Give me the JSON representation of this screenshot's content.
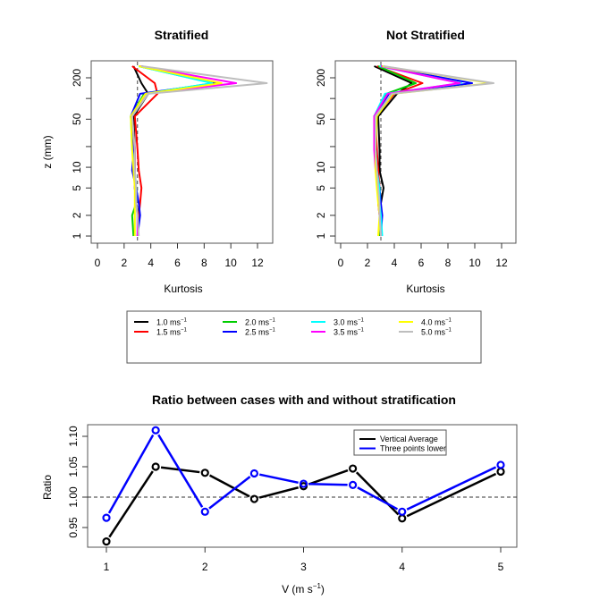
{
  "chart_data": [
    {
      "type": "line",
      "title": "Stratified",
      "xlabel": "Kurtosis",
      "ylabel": "z (mm)",
      "xlim": [
        0,
        13
      ],
      "ylim_log": [
        1,
        300
      ],
      "yscale": "log",
      "xticks": [
        0,
        2,
        4,
        6,
        8,
        10,
        12
      ],
      "yticks": [
        1,
        2,
        5,
        10,
        20,
        50,
        100,
        200
      ],
      "ytick_labels": [
        "1",
        "2",
        "5",
        "10",
        "",
        "50",
        "",
        "200"
      ],
      "reference_line": {
        "x": 3,
        "style": "dashed"
      },
      "z": [
        1,
        2,
        3,
        5,
        9,
        18,
        55,
        117,
        167,
        295
      ],
      "series": [
        {
          "name": "1.0 ms-1",
          "color": "#000000",
          "values": [
            3.0,
            3.1,
            2.9,
            2.8,
            2.8,
            2.8,
            2.7,
            3.8,
            3.3,
            2.7
          ]
        },
        {
          "name": "1.5 ms-1",
          "color": "#ff0000",
          "values": [
            3.0,
            3.1,
            3.2,
            3.3,
            3.1,
            3.0,
            2.8,
            4.5,
            4.3,
            2.6
          ]
        },
        {
          "name": "2.0 ms-1",
          "color": "#00cd00",
          "values": [
            2.7,
            2.6,
            2.9,
            2.8,
            2.8,
            2.7,
            2.5,
            3.5,
            8.7,
            3.1
          ]
        },
        {
          "name": "2.5 ms-1",
          "color": "#0000ff",
          "values": [
            3.0,
            3.2,
            3.1,
            2.9,
            2.6,
            2.7,
            2.5,
            3.2,
            9.0,
            3.3
          ]
        },
        {
          "name": "3.0 ms-1",
          "color": "#00ffff",
          "values": [
            3.0,
            3.0,
            2.9,
            2.9,
            2.8,
            2.6,
            2.5,
            3.6,
            8.6,
            3.1
          ]
        },
        {
          "name": "3.5 ms-1",
          "color": "#ff00ff",
          "values": [
            3.0,
            3.0,
            2.9,
            2.8,
            2.8,
            2.8,
            2.6,
            3.6,
            10.4,
            3.2
          ]
        },
        {
          "name": "4.0 ms-1",
          "color": "#ffff00",
          "values": [
            2.8,
            2.8,
            2.8,
            2.8,
            2.7,
            2.6,
            2.5,
            3.6,
            9.3,
            3.1
          ]
        },
        {
          "name": "5.0 ms-1",
          "color": "#bebebe",
          "values": [
            3.1,
            3.0,
            2.9,
            2.9,
            2.8,
            2.8,
            2.6,
            3.8,
            12.7,
            3.3
          ]
        }
      ]
    },
    {
      "type": "line",
      "title": "Not Stratified",
      "xlabel": "Kurtosis",
      "ylabel": "",
      "xlim": [
        0,
        13
      ],
      "ylim_log": [
        1,
        300
      ],
      "yscale": "log",
      "xticks": [
        0,
        2,
        4,
        6,
        8,
        10,
        12
      ],
      "yticks": [
        1,
        2,
        5,
        10,
        20,
        50,
        100,
        200
      ],
      "ytick_labels": [
        "1",
        "2",
        "5",
        "10",
        "",
        "50",
        "",
        "200"
      ],
      "reference_line": {
        "x": 3,
        "style": "dashed"
      },
      "z": [
        1,
        2,
        3,
        5,
        9,
        18,
        55,
        117,
        167,
        295
      ],
      "series": [
        {
          "name": "1.0 ms-1",
          "color": "#000000",
          "values": [
            3.0,
            2.9,
            3.0,
            3.2,
            2.9,
            2.9,
            2.8,
            4.2,
            5.3,
            2.5
          ]
        },
        {
          "name": "1.5 ms-1",
          "color": "#ff0000",
          "values": [
            3.0,
            2.9,
            2.8,
            2.9,
            2.8,
            2.7,
            2.6,
            4.0,
            6.1,
            2.7
          ]
        },
        {
          "name": "2.0 ms-1",
          "color": "#00cd00",
          "values": [
            2.9,
            2.9,
            2.9,
            2.8,
            2.7,
            2.6,
            2.5,
            3.4,
            5.6,
            2.8
          ]
        },
        {
          "name": "2.5 ms-1",
          "color": "#0000ff",
          "values": [
            3.0,
            3.1,
            3.0,
            2.9,
            2.7,
            2.6,
            2.5,
            3.6,
            9.8,
            3.0
          ]
        },
        {
          "name": "3.0 ms-1",
          "color": "#00ffff",
          "values": [
            3.1,
            3.0,
            2.9,
            2.9,
            2.7,
            2.6,
            2.5,
            3.3,
            9.0,
            2.9
          ]
        },
        {
          "name": "3.5 ms-1",
          "color": "#ff00ff",
          "values": [
            3.0,
            2.9,
            2.8,
            2.8,
            2.6,
            2.5,
            2.5,
            3.5,
            8.9,
            3.0
          ]
        },
        {
          "name": "4.0 ms-1",
          "color": "#ffff00",
          "values": [
            2.8,
            2.9,
            2.8,
            2.7,
            2.6,
            2.6,
            2.7,
            3.9,
            11.2,
            3.1
          ]
        },
        {
          "name": "5.0 ms-1",
          "color": "#bebebe",
          "values": [
            3.0,
            2.9,
            2.9,
            2.8,
            2.7,
            2.6,
            2.6,
            3.8,
            11.4,
            3.2
          ]
        }
      ]
    },
    {
      "type": "line",
      "title": "Ratio between cases with and without stratification",
      "xlabel": "V (m s^-1)",
      "ylabel": "Ratio",
      "xlim": [
        1,
        5
      ],
      "ylim": [
        0.925,
        1.115
      ],
      "xticks": [
        1,
        2,
        3,
        4,
        5
      ],
      "yticks": [
        0.95,
        1.0,
        1.05,
        1.1
      ],
      "ytick_labels": [
        "0.95",
        "1.00",
        "1.05",
        "1.10"
      ],
      "reference_line": {
        "y": 1.0,
        "style": "dashed"
      },
      "legend_position": "top-right",
      "x": [
        1.0,
        1.5,
        2.0,
        2.5,
        3.0,
        3.5,
        4.0,
        5.0
      ],
      "series": [
        {
          "name": "Vertical Average",
          "color": "#000000",
          "values": [
            0.927,
            1.05,
            1.04,
            0.997,
            1.018,
            1.047,
            0.965,
            1.042
          ]
        },
        {
          "name": "Three points lower",
          "color": "#0000ff",
          "values": [
            0.966,
            1.11,
            0.976,
            1.039,
            1.022,
            1.02,
            0.976,
            1.053
          ]
        }
      ]
    }
  ],
  "legend_top": {
    "unit": "ms",
    "unit_exp": "−1",
    "items": [
      {
        "label": "1.0",
        "color": "#000000"
      },
      {
        "label": "1.5",
        "color": "#ff0000"
      },
      {
        "label": "2.0",
        "color": "#00cd00"
      },
      {
        "label": "2.5",
        "color": "#0000ff"
      },
      {
        "label": "3.0",
        "color": "#00ffff"
      },
      {
        "label": "3.5",
        "color": "#ff00ff"
      },
      {
        "label": "4.0",
        "color": "#ffff00"
      },
      {
        "label": "5.0",
        "color": "#bebebe"
      }
    ]
  },
  "bottom_xlabel": {
    "base": "V (m s",
    "exp": "−1",
    "close": ")"
  }
}
